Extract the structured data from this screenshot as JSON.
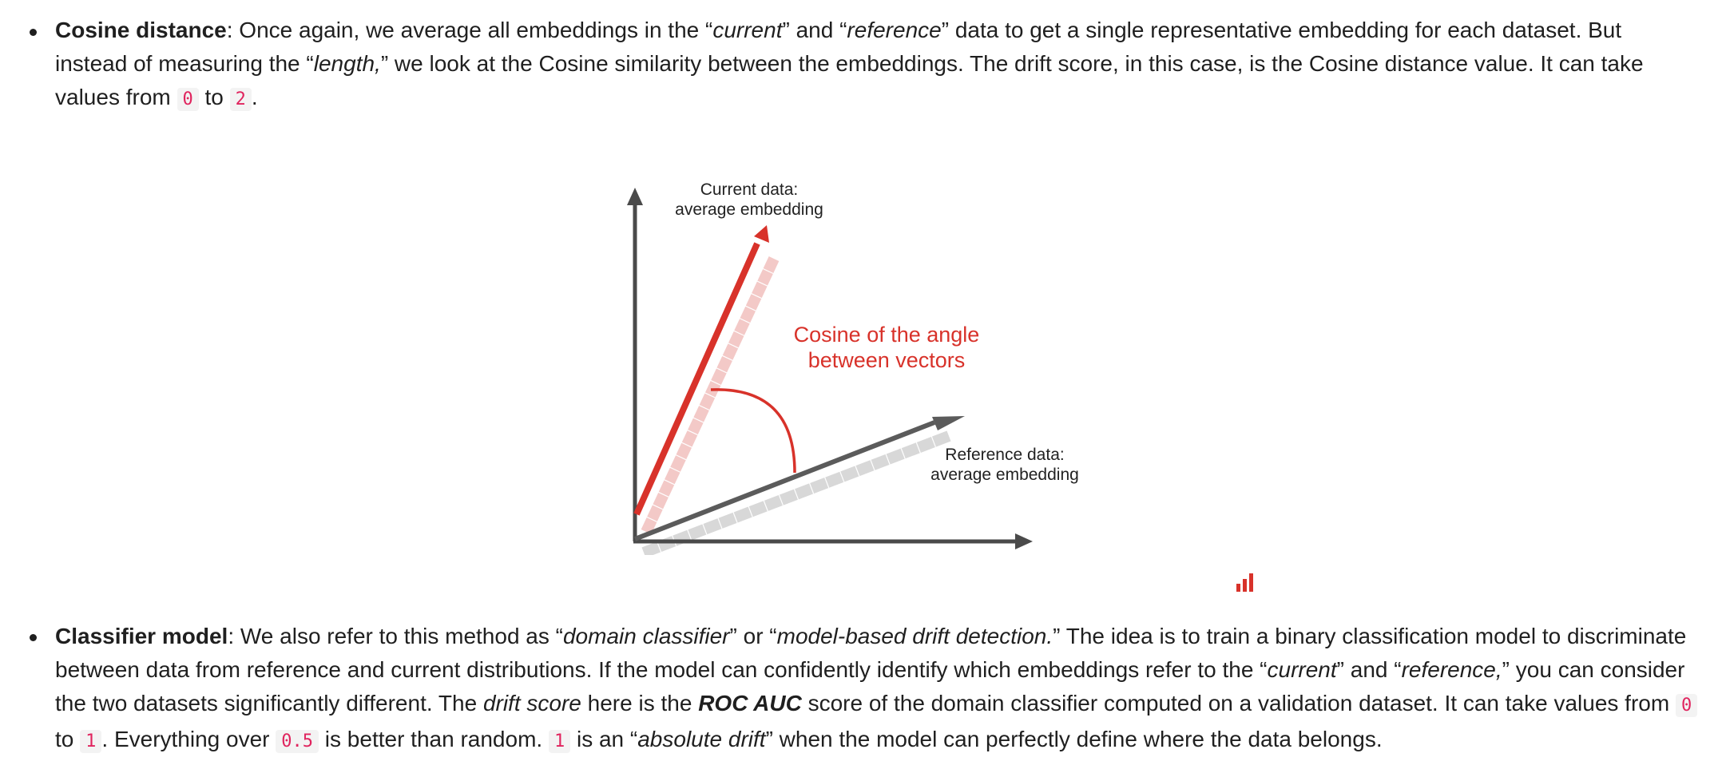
{
  "items": [
    {
      "term": "Cosine distance",
      "t1": ": Once again, we average all embeddings in the “",
      "e1": "current",
      "t2": "” and “",
      "e2": "reference",
      "t3": "” data to get a single representative embedding for each dataset. But instead of measuring the “",
      "e3": "length,",
      "t4": "” we look at the Cosine similarity between the embeddings. The drift score, in this case, is the Cosine distance value. It can take values from ",
      "c1": "0",
      "t5": " to ",
      "c2": "2",
      "t6": "."
    },
    {
      "term": "Classifier model",
      "t1": ": We also refer to this method as “",
      "e1": "domain classifier",
      "t2": "” or “",
      "e2": "model-based drift detection.",
      "t3": "” The idea is to train a binary classification model to discriminate between data from reference and current distributions. If the model can confidently identify which embeddings refer to the “",
      "e3": "current",
      "t4": "” and “",
      "e4": "reference,",
      "t5": "” you can consider the two datasets significantly different. The ",
      "e5": "drift score",
      "t6": " here is the ",
      "s1": "ROC AUC",
      "t7": " score of the domain classifier computed on a validation dataset. It can take values from ",
      "c1": "0",
      "t8": " to ",
      "c2": "1",
      "t9": ". Everything over ",
      "c3": "0.5",
      "t10": " is better than random. ",
      "c4": "1",
      "t11": " is an “",
      "e6": "absolute drift",
      "t12": "” when the model can perfectly define where the data belongs."
    }
  ],
  "figure": {
    "current_label": [
      "Current data:",
      "average embedding"
    ],
    "reference_label": [
      "Reference data:",
      "average embedding"
    ],
    "angle_label": [
      "Cosine of the angle",
      "between vectors"
    ],
    "colors": {
      "current": "#d8322a",
      "current_shade": "#f3c9c7",
      "reference": "#5b5b5b",
      "reference_shade": "#d8d8d8",
      "axis": "#4a4a4a"
    }
  },
  "icons": {
    "chart": "bar-chart-icon"
  }
}
